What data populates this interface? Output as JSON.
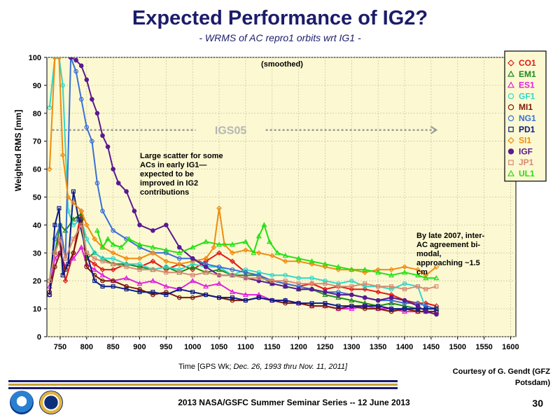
{
  "page": {
    "title": "Expected Performance of IG2?",
    "subtitle": "- WRMS of AC repro1 orbits wrt IG1 -",
    "courtesy_line1": "Courtesy of G. Gendt (GFZ",
    "courtesy_line2": "Potsdam)",
    "footer": "2013 NASA/GSFC Summer Seminar Series -- 12 June 2013",
    "page_number": "30"
  },
  "chart_data": {
    "type": "line",
    "ylabel": "Weighted RMS [mm]",
    "xlabel_prefix": "Time   [GPS Wk; ",
    "xlabel_italic": "Dec. 26, 1993 thru Nov. 11, 2011]",
    "annotation_top": "(smoothed)",
    "annotation_left": [
      "Large scatter for some",
      "ACs in early IG1—",
      "expected to be",
      "improved in IG2",
      "contributions"
    ],
    "annotation_right": [
      "By late 2007, inter-",
      "AC agreement bi-",
      "modal,",
      "approaching ~1.5",
      "cm"
    ],
    "reference_label": "IGS05",
    "reference_arrow": {
      "x_start": 735,
      "x_end": 1460,
      "y": 74
    },
    "xlim": [
      725,
      1610
    ],
    "ylim": [
      0,
      100
    ],
    "xticks": [
      750,
      800,
      850,
      900,
      950,
      1000,
      1050,
      1100,
      1150,
      1200,
      1250,
      1300,
      1350,
      1400,
      1450,
      1500,
      1550,
      1600
    ],
    "yticks": [
      0,
      10,
      20,
      30,
      40,
      50,
      60,
      70,
      80,
      90,
      100
    ],
    "grid": true,
    "legend_position": "top-right",
    "series": [
      {
        "name": "CO1",
        "color": "#e01818",
        "marker": "diamond",
        "x": [
          730,
          740,
          748,
          760,
          775,
          790,
          800,
          815,
          830,
          850,
          875,
          900,
          925,
          950,
          975,
          1000,
          1025,
          1050,
          1075,
          1100,
          1125,
          1150,
          1175,
          1200,
          1225,
          1250,
          1275,
          1300,
          1325,
          1350,
          1375,
          1400,
          1425,
          1440,
          1460
        ],
        "y": [
          15,
          30,
          35,
          20,
          30,
          45,
          28,
          26,
          24,
          24,
          26,
          25,
          27,
          24,
          26,
          24,
          27,
          30,
          27,
          23,
          22,
          20,
          19,
          18,
          19,
          17,
          18,
          17,
          17,
          16,
          15,
          13,
          12,
          12,
          11
        ]
      },
      {
        "name": "EM1",
        "color": "#1e8a1e",
        "marker": "triangle",
        "x": [
          730,
          740,
          750,
          760,
          775,
          790,
          800,
          815,
          830,
          850,
          875,
          900,
          925,
          950,
          975,
          1000,
          1025,
          1050,
          1075,
          1100,
          1125,
          1150,
          1175,
          1200,
          1225,
          1250,
          1275,
          1300,
          1325,
          1350,
          1375,
          1400,
          1425,
          1440,
          1460
        ],
        "y": [
          18,
          30,
          40,
          38,
          42,
          44,
          28,
          30,
          28,
          26,
          26,
          25,
          24,
          25,
          23,
          25,
          23,
          24,
          22,
          22,
          22,
          19,
          18,
          17,
          17,
          15,
          14,
          13,
          12,
          11,
          12,
          11,
          10,
          10,
          10
        ]
      },
      {
        "name": "ES1",
        "color": "#e020e0",
        "marker": "triangle",
        "x": [
          730,
          740,
          750,
          760,
          775,
          790,
          800,
          815,
          830,
          850,
          875,
          900,
          925,
          950,
          975,
          1000,
          1025,
          1050,
          1075,
          1100,
          1125,
          1150,
          1175,
          1200,
          1225,
          1250,
          1275,
          1300,
          1325,
          1350,
          1375,
          1400,
          1425,
          1440,
          1460
        ],
        "y": [
          18,
          28,
          30,
          25,
          28,
          32,
          26,
          24,
          22,
          20,
          21,
          19,
          20,
          18,
          17,
          20,
          18,
          19,
          16,
          15,
          15,
          13,
          13,
          12,
          11,
          11,
          10,
          10,
          11,
          10,
          10,
          9,
          9,
          9,
          9
        ]
      },
      {
        "name": "GF1",
        "color": "#30d8c8",
        "marker": "circle",
        "x": [
          730,
          740,
          748,
          755,
          765,
          775,
          790,
          800,
          815,
          830,
          850,
          875,
          900,
          925,
          950,
          975,
          1000,
          1025,
          1050,
          1075,
          1100,
          1125,
          1150,
          1175,
          1200,
          1225,
          1250,
          1275,
          1300,
          1325,
          1350,
          1375,
          1400,
          1425,
          1440,
          1460
        ],
        "y": [
          82,
          100,
          100,
          90,
          45,
          40,
          42,
          35,
          30,
          28,
          28,
          26,
          26,
          24,
          25,
          24,
          26,
          25,
          25,
          22,
          24,
          23,
          22,
          22,
          21,
          21,
          20,
          19,
          20,
          18,
          18,
          17,
          19,
          18,
          10,
          10
        ]
      },
      {
        "name": "MI1",
        "color": "#7a1a0a",
        "marker": "circle",
        "x": [
          730,
          740,
          750,
          760,
          775,
          790,
          800,
          815,
          830,
          850,
          875,
          900,
          925,
          950,
          975,
          1000,
          1025,
          1050,
          1075,
          1100,
          1125,
          1150,
          1175,
          1200,
          1225,
          1250,
          1275,
          1300,
          1325,
          1350,
          1375,
          1400,
          1425,
          1440,
          1460
        ],
        "y": [
          16,
          25,
          30,
          24,
          30,
          42,
          25,
          22,
          20,
          20,
          18,
          17,
          15,
          16,
          14,
          14,
          15,
          14,
          13,
          13,
          14,
          13,
          12,
          12,
          11,
          11,
          10,
          11,
          10,
          10,
          9,
          10,
          9,
          9,
          9
        ]
      },
      {
        "name": "NG1",
        "color": "#3a6fd8",
        "marker": "circle",
        "x": [
          730,
          740,
          750,
          760,
          770,
          780,
          790,
          800,
          810,
          820,
          830,
          850,
          875,
          900,
          925,
          950,
          975,
          1000,
          1025,
          1050,
          1075,
          1100,
          1125,
          1150,
          1175,
          1200,
          1225,
          1250,
          1275,
          1300,
          1325,
          1350,
          1375,
          1400,
          1425,
          1440,
          1460
        ],
        "y": [
          20,
          35,
          40,
          28,
          100,
          95,
          85,
          75,
          70,
          55,
          45,
          38,
          35,
          32,
          30,
          30,
          28,
          28,
          26,
          25,
          24,
          23,
          22,
          20,
          19,
          18,
          17,
          16,
          16,
          15,
          14,
          13,
          13,
          12,
          12,
          11,
          10
        ]
      },
      {
        "name": "PD1",
        "color": "#0a1a8a",
        "marker": "square",
        "x": [
          730,
          740,
          748,
          755,
          765,
          775,
          785,
          800,
          815,
          830,
          850,
          875,
          900,
          925,
          950,
          975,
          1000,
          1025,
          1050,
          1075,
          1100,
          1125,
          1150,
          1175,
          1200,
          1225,
          1250,
          1275,
          1300,
          1325,
          1350,
          1375,
          1400,
          1425,
          1440,
          1460
        ],
        "y": [
          15,
          40,
          46,
          22,
          26,
          52,
          42,
          30,
          20,
          18,
          18,
          17,
          16,
          16,
          15,
          17,
          16,
          15,
          14,
          14,
          13,
          14,
          13,
          13,
          12,
          12,
          12,
          11,
          11,
          11,
          11,
          10,
          10,
          10,
          10,
          10
        ]
      },
      {
        "name": "SI1",
        "color": "#f08c10",
        "marker": "diamond",
        "x": [
          730,
          740,
          748,
          755,
          765,
          775,
          790,
          800,
          815,
          830,
          850,
          875,
          900,
          925,
          950,
          975,
          1000,
          1025,
          1040,
          1050,
          1060,
          1075,
          1100,
          1125,
          1150,
          1175,
          1200,
          1225,
          1250,
          1275,
          1300,
          1325,
          1350,
          1375,
          1400,
          1425,
          1440,
          1460
        ],
        "y": [
          60,
          100,
          100,
          65,
          50,
          48,
          45,
          40,
          35,
          32,
          30,
          28,
          28,
          30,
          27,
          26,
          27,
          28,
          32,
          46,
          33,
          30,
          31,
          30,
          29,
          27,
          27,
          26,
          25,
          24,
          24,
          23,
          24,
          24,
          25,
          24,
          22,
          25
        ]
      },
      {
        "name": "IGF",
        "color": "#5a1a90",
        "marker": "circle-filled",
        "x": [
          770,
          780,
          790,
          800,
          810,
          820,
          830,
          840,
          850,
          860,
          875,
          890,
          900,
          925,
          950,
          975,
          1000,
          1025,
          1050,
          1075,
          1100,
          1125,
          1150,
          1175,
          1200,
          1225,
          1250,
          1275,
          1300,
          1325,
          1350,
          1375,
          1400,
          1425,
          1440,
          1460
        ],
        "y": [
          100,
          99,
          97,
          92,
          85,
          80,
          72,
          68,
          60,
          55,
          52,
          45,
          40,
          38,
          40,
          32,
          28,
          25,
          22,
          22,
          21,
          20,
          19,
          18,
          17,
          17,
          16,
          15,
          15,
          14,
          13,
          14,
          13,
          11,
          9,
          8
        ]
      },
      {
        "name": "JP1",
        "color": "#d88a70",
        "marker": "square",
        "x": [
          730,
          740,
          750,
          760,
          775,
          790,
          800,
          815,
          830,
          850,
          875,
          900,
          925,
          950,
          975,
          1000,
          1025,
          1050,
          1075,
          1100,
          1125,
          1150,
          1175,
          1200,
          1225,
          1250,
          1275,
          1300,
          1325,
          1350,
          1375,
          1400,
          1425,
          1440,
          1460
        ],
        "y": [
          20,
          30,
          35,
          28,
          35,
          40,
          30,
          28,
          27,
          26,
          25,
          24,
          24,
          23,
          23,
          22,
          23,
          22,
          22,
          21,
          21,
          20,
          20,
          19,
          19,
          19,
          18,
          18,
          19,
          18,
          18,
          17,
          18,
          17,
          18
        ]
      },
      {
        "name": "UL1",
        "color": "#22e012",
        "marker": "triangle",
        "x": [
          820,
          830,
          840,
          850,
          865,
          880,
          900,
          925,
          950,
          975,
          1000,
          1025,
          1050,
          1075,
          1100,
          1115,
          1125,
          1135,
          1145,
          1160,
          1175,
          1200,
          1225,
          1250,
          1275,
          1300,
          1325,
          1350,
          1375,
          1400,
          1425,
          1440,
          1460
        ],
        "y": [
          38,
          32,
          35,
          33,
          32,
          35,
          33,
          32,
          31,
          30,
          32,
          34,
          33,
          33,
          34,
          30,
          36,
          40,
          34,
          30,
          29,
          28,
          27,
          26,
          25,
          24,
          24,
          23,
          22,
          23,
          22,
          21,
          21
        ]
      }
    ]
  }
}
